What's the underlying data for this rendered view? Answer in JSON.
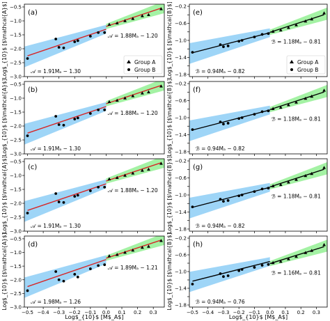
{
  "figure": {
    "xlabel": "Log$_{10}$ [M$_A$]",
    "x_ticks": [
      "−0.5",
      "−0.4",
      "−0.3",
      "−0.2",
      "−0.1",
      "0.0",
      "0.1",
      "0.2",
      "0.3"
    ],
    "colors": {
      "fit_left": "#4fb3f0",
      "fit_right": "#59e85a",
      "red_line": "#d62728",
      "black_line": "#000000",
      "points": "#000000"
    },
    "legend": {
      "entries": [
        {
          "label": "Group A",
          "marker": "triangle"
        },
        {
          "label": "Group B",
          "marker": "circle"
        }
      ]
    }
  },
  "chart_data": [
    {
      "type": "scatter",
      "panel": "(a)",
      "column": "left",
      "row": 0,
      "ylabel": "Log$_{10}$ [$\\mathcal{A}$]",
      "xlim": [
        -0.52,
        0.37
      ],
      "ylim": [
        -3.0,
        -0.4
      ],
      "yticks": [
        -3.0,
        -2.5,
        -2.0,
        -1.5,
        -1.0,
        -0.5
      ],
      "ytick_labels": [
        "−3.0",
        "−2.5",
        "−2.0",
        "−1.5",
        "−1.0",
        "−0.5"
      ],
      "fit_left": {
        "slope": 1.91,
        "intercept": -1.3,
        "label": "𝒜 = 1.91Mₐ − 1.30"
      },
      "fit_right": {
        "slope": 1.88,
        "intercept": -1.2,
        "label": "𝒜 = 1.88Mₐ − 1.20"
      },
      "fit_line_color": "red",
      "group_a": {
        "name": "Group A",
        "x": [
          0.02,
          0.07,
          0.12,
          0.17,
          0.23,
          0.27,
          0.35
        ],
        "y": [
          -1.13,
          -1.08,
          -1.0,
          -0.92,
          -0.82,
          -0.78,
          -0.57
        ]
      },
      "group_b": {
        "name": "Group B",
        "x": [
          -0.5,
          -0.32,
          -0.3,
          -0.27,
          -0.2,
          -0.18,
          -0.1,
          -0.05,
          -0.01
        ],
        "y": [
          -2.35,
          -1.65,
          -1.95,
          -1.97,
          -1.75,
          -1.71,
          -1.55,
          -1.42,
          -1.42
        ]
      },
      "legend_shown": true,
      "legend_placement": "lower right"
    },
    {
      "type": "scatter",
      "panel": "(b)",
      "column": "left",
      "row": 1,
      "ylabel": "Log$_{10}$ [$\\mathcal{A}$]",
      "xlim": [
        -0.52,
        0.37
      ],
      "ylim": [
        -3.0,
        -0.4
      ],
      "yticks": [
        -3.0,
        -2.5,
        -2.0,
        -1.5,
        -1.0,
        -0.5
      ],
      "ytick_labels": [
        "−3.0",
        "−2.5",
        "−2.0",
        "−1.5",
        "−1.0",
        "−0.5"
      ],
      "fit_left": {
        "slope": 1.91,
        "intercept": -1.3,
        "label": "𝒜 = 1.91Mₐ − 1.30"
      },
      "fit_right": {
        "slope": 1.88,
        "intercept": -1.2,
        "label": "𝒜 = 1.88Mₐ − 1.20"
      },
      "fit_line_color": "red",
      "group_a": {
        "name": "Group A",
        "x": [
          0.02,
          0.07,
          0.12,
          0.17,
          0.23,
          0.27,
          0.35
        ],
        "y": [
          -1.13,
          -1.08,
          -1.0,
          -0.92,
          -0.82,
          -0.78,
          -0.57
        ]
      },
      "group_b": {
        "name": "Group B",
        "x": [
          -0.5,
          -0.32,
          -0.3,
          -0.27,
          -0.2,
          -0.18,
          -0.1,
          -0.05,
          -0.01
        ],
        "y": [
          -2.35,
          -1.65,
          -1.95,
          -1.97,
          -1.75,
          -1.71,
          -1.55,
          -1.42,
          -1.42
        ]
      },
      "legend_shown": false
    },
    {
      "type": "scatter",
      "panel": "(c)",
      "column": "left",
      "row": 2,
      "ylabel": "Log$_{10}$ [$\\mathcal{A}$]",
      "xlim": [
        -0.52,
        0.37
      ],
      "ylim": [
        -3.0,
        -0.4
      ],
      "yticks": [
        -3.0,
        -2.5,
        -2.0,
        -1.5,
        -1.0,
        -0.5
      ],
      "ytick_labels": [
        "−3.0",
        "−2.5",
        "−2.0",
        "−1.5",
        "−1.0",
        "−0.5"
      ],
      "fit_left": {
        "slope": 1.91,
        "intercept": -1.3,
        "label": "𝒜 = 1.91Mₐ − 1.30"
      },
      "fit_right": {
        "slope": 1.88,
        "intercept": -1.2,
        "label": "𝒜 = 1.88Mₐ − 1.20"
      },
      "fit_line_color": "red",
      "group_a": {
        "name": "Group A",
        "x": [
          0.02,
          0.07,
          0.12,
          0.17,
          0.23,
          0.27,
          0.35
        ],
        "y": [
          -1.13,
          -1.08,
          -1.0,
          -0.92,
          -0.82,
          -0.78,
          -0.57
        ]
      },
      "group_b": {
        "name": "Group B",
        "x": [
          -0.5,
          -0.32,
          -0.3,
          -0.27,
          -0.2,
          -0.18,
          -0.1,
          -0.05,
          -0.01
        ],
        "y": [
          -2.35,
          -1.65,
          -1.95,
          -1.97,
          -1.75,
          -1.71,
          -1.55,
          -1.42,
          -1.42
        ]
      },
      "legend_shown": false
    },
    {
      "type": "scatter",
      "panel": "(d)",
      "column": "left",
      "row": 3,
      "ylabel": "Log$_{10}$ [$\\mathcal{A}$]",
      "xlim": [
        -0.52,
        0.37
      ],
      "ylim": [
        -3.0,
        -0.4
      ],
      "yticks": [
        -3.0,
        -2.5,
        -2.0,
        -1.5,
        -1.0,
        -0.5
      ],
      "ytick_labels": [
        "−3.0",
        "−2.5",
        "−2.0",
        "−1.5",
        "−1.0",
        "−0.5"
      ],
      "fit_left": {
        "slope": 1.98,
        "intercept": -1.26,
        "label": "𝒜 = 1.98Mₐ − 1.26"
      },
      "fit_right": {
        "slope": 1.89,
        "intercept": -1.21,
        "label": "𝒜 = 1.89Mₐ − 1.21"
      },
      "fit_line_color": "red",
      "group_a": {
        "name": "Group A",
        "x": [
          0.02,
          0.07,
          0.12,
          0.17,
          0.23,
          0.27,
          0.35
        ],
        "y": [
          -1.13,
          -1.08,
          -1.0,
          -0.92,
          -0.82,
          -0.78,
          -0.57
        ]
      },
      "group_b": {
        "name": "Group B",
        "x": [
          -0.5,
          -0.32,
          -0.3,
          -0.27,
          -0.2,
          -0.18,
          -0.1,
          -0.05,
          -0.01
        ],
        "y": [
          -2.4,
          -1.7,
          -2.0,
          -2.05,
          -1.8,
          -1.9,
          -1.6,
          -1.48,
          -1.45
        ]
      },
      "legend_shown": false
    },
    {
      "type": "scatter",
      "panel": "(e)",
      "column": "right",
      "row": 0,
      "ylabel": "Log$_{10}$ [$\\mathcal{B}$]",
      "xlim": [
        -0.52,
        0.37
      ],
      "ylim": [
        -1.85,
        -0.15
      ],
      "yticks": [
        -1.8,
        -1.6,
        -1.4,
        -1.2,
        -1.0,
        -0.8,
        -0.6,
        -0.4,
        -0.2
      ],
      "ytick_labels": [
        "−1.8",
        "",
        "−1.4",
        "",
        "−1.0",
        "",
        "−0.6",
        "",
        "−0.2"
      ],
      "fit_left": {
        "slope": 0.94,
        "intercept": -0.82,
        "label": "ℬ = 0.94Mₐ − 0.82"
      },
      "fit_right": {
        "slope": 1.18,
        "intercept": -0.81,
        "label": "ℬ = 1.18Mₐ − 0.81"
      },
      "fit_line_color": "black",
      "group_a": {
        "name": "Group A",
        "x": [
          0.02,
          0.07,
          0.12,
          0.17,
          0.23,
          0.27,
          0.35
        ],
        "y": [
          -0.79,
          -0.76,
          -0.7,
          -0.64,
          -0.55,
          -0.5,
          -0.36
        ]
      },
      "group_b": {
        "name": "Group B",
        "x": [
          -0.5,
          -0.32,
          -0.3,
          -0.27,
          -0.2,
          -0.18,
          -0.1,
          -0.05,
          -0.01
        ],
        "y": [
          -1.28,
          -1.1,
          -1.15,
          -1.13,
          -1.02,
          -1.0,
          -0.92,
          -0.86,
          -0.84
        ]
      },
      "legend_shown": true,
      "legend_placement": "lower right"
    },
    {
      "type": "scatter",
      "panel": "(f)",
      "column": "right",
      "row": 1,
      "ylabel": "Log$_{10}$ [$\\mathcal{B}$]",
      "xlim": [
        -0.52,
        0.37
      ],
      "ylim": [
        -1.85,
        -0.15
      ],
      "yticks": [
        -1.8,
        -1.6,
        -1.4,
        -1.2,
        -1.0,
        -0.8,
        -0.6,
        -0.4,
        -0.2
      ],
      "ytick_labels": [
        "−1.8",
        "",
        "−1.4",
        "",
        "−1.0",
        "",
        "−0.6",
        "",
        "−0.2"
      ],
      "fit_left": {
        "slope": 0.94,
        "intercept": -0.82,
        "label": "ℬ = 0.94Mₐ − 0.82"
      },
      "fit_right": {
        "slope": 1.18,
        "intercept": -0.81,
        "label": "ℬ = 1.18Mₐ − 0.81"
      },
      "fit_line_color": "black",
      "group_a": {
        "name": "Group A",
        "x": [
          0.02,
          0.07,
          0.12,
          0.17,
          0.23,
          0.27,
          0.35
        ],
        "y": [
          -0.79,
          -0.76,
          -0.7,
          -0.64,
          -0.55,
          -0.5,
          -0.36
        ]
      },
      "group_b": {
        "name": "Group B",
        "x": [
          -0.5,
          -0.32,
          -0.3,
          -0.27,
          -0.2,
          -0.18,
          -0.1,
          -0.05,
          -0.01
        ],
        "y": [
          -1.28,
          -1.1,
          -1.15,
          -1.13,
          -1.02,
          -1.0,
          -0.92,
          -0.86,
          -0.84
        ]
      },
      "legend_shown": false
    },
    {
      "type": "scatter",
      "panel": "(g)",
      "column": "right",
      "row": 2,
      "ylabel": "Log$_{10}$ [$\\mathcal{B}$]",
      "xlim": [
        -0.52,
        0.37
      ],
      "ylim": [
        -1.85,
        -0.15
      ],
      "yticks": [
        -1.8,
        -1.6,
        -1.4,
        -1.2,
        -1.0,
        -0.8,
        -0.6,
        -0.4,
        -0.2
      ],
      "ytick_labels": [
        "−1.8",
        "",
        "−1.4",
        "",
        "−1.0",
        "",
        "−0.6",
        "",
        "−0.2"
      ],
      "fit_left": {
        "slope": 0.94,
        "intercept": -0.82,
        "label": "ℬ = 0.94Mₐ − 0.82"
      },
      "fit_right": {
        "slope": 1.18,
        "intercept": -0.81,
        "label": "ℬ = 1.18Mₐ − 0.81"
      },
      "fit_line_color": "black",
      "group_a": {
        "name": "Group A",
        "x": [
          0.02,
          0.07,
          0.12,
          0.17,
          0.23,
          0.27,
          0.35
        ],
        "y": [
          -0.79,
          -0.76,
          -0.7,
          -0.64,
          -0.55,
          -0.5,
          -0.36
        ]
      },
      "group_b": {
        "name": "Group B",
        "x": [
          -0.5,
          -0.32,
          -0.3,
          -0.27,
          -0.2,
          -0.18,
          -0.1,
          -0.05,
          -0.01
        ],
        "y": [
          -1.28,
          -1.1,
          -1.15,
          -1.13,
          -1.02,
          -1.0,
          -0.92,
          -0.86,
          -0.84
        ]
      },
      "legend_shown": false
    },
    {
      "type": "scatter",
      "panel": "(h)",
      "column": "right",
      "row": 3,
      "ylabel": "Log$_{10}$ [$\\mathcal{B}$]",
      "xlim": [
        -0.52,
        0.37
      ],
      "ylim": [
        -1.85,
        -0.15
      ],
      "yticks": [
        -1.8,
        -1.6,
        -1.4,
        -1.2,
        -1.0,
        -0.8,
        -0.6,
        -0.4,
        -0.2
      ],
      "ytick_labels": [
        "−1.8",
        "",
        "−1.4",
        "",
        "−1.0",
        "",
        "−0.6",
        "",
        "−0.2"
      ],
      "fit_left": {
        "slope": 0.94,
        "intercept": -0.76,
        "label": "ℬ = 0.94Mₐ − 0.76"
      },
      "fit_right": {
        "slope": 1.16,
        "intercept": -0.81,
        "label": "ℬ = 1.16Mₐ − 0.81"
      },
      "fit_line_color": "black",
      "group_a": {
        "name": "Group A",
        "x": [
          0.02,
          0.07,
          0.12,
          0.17,
          0.23,
          0.27,
          0.35
        ],
        "y": [
          -0.79,
          -0.76,
          -0.7,
          -0.64,
          -0.55,
          -0.5,
          -0.36
        ]
      },
      "group_b": {
        "name": "Group B",
        "x": [
          -0.5,
          -0.32,
          -0.3,
          -0.27,
          -0.2,
          -0.18,
          -0.1,
          -0.05,
          -0.01
        ],
        "y": [
          -1.3,
          -1.05,
          -1.12,
          -1.1,
          -0.98,
          -0.95,
          -0.9,
          -0.85,
          -0.83
        ]
      },
      "legend_shown": false
    }
  ]
}
